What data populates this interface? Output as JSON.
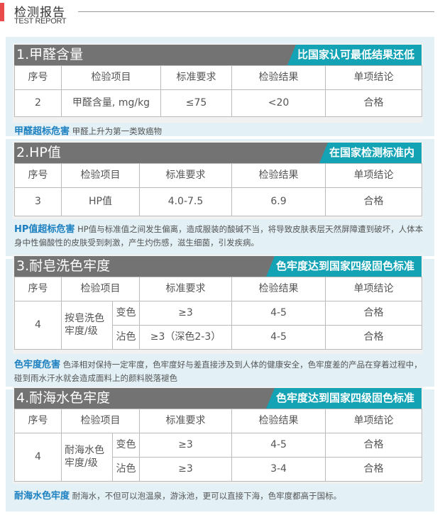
{
  "header": {
    "title": "检测报告",
    "subtitle": "TEST REPORT"
  },
  "sections": [
    {
      "title": "1.甲醛含量",
      "tag": "比国家认可最低结果还低",
      "headers": [
        "序号",
        "检验项目",
        "标准要求",
        "检验结果",
        "单项结论"
      ],
      "row": [
        "2",
        "甲醛含量, mg/kg",
        "≤75",
        "<20",
        "合格"
      ],
      "note_key": "甲醛超标危害",
      "note_text": "甲醛上升为第一类致癌物"
    },
    {
      "title": "2.HP值",
      "tag": "在国家检测标准内",
      "headers": [
        "序号",
        "检验项目",
        "标准要求",
        "检验结果",
        "单项结论"
      ],
      "row": [
        "3",
        "HP值",
        "4.0-7.5",
        "6.9",
        "合格"
      ],
      "note_key": "HP值超标危害",
      "note_text": "HP值与标准值之间发生偏离，造成服装的酸碱不当，将导致皮肤表层天然屏障遭到破坏，人体本身中性偏酸性的皮肤受到刺激，产生灼伤感，滋生细菌，引发疾病。"
    },
    {
      "title": "3.耐皂洗色牢度",
      "tag": "色牢度达到国家四级固色标准",
      "headers": [
        "序号",
        "检验项目",
        "标准要求",
        "检验结果",
        "单项结论"
      ],
      "num": "4",
      "item": "按皂洗色牢度/级",
      "rows": [
        {
          "sub": "变色",
          "std": "≥3",
          "result": "4-5",
          "conclusion": "合格"
        },
        {
          "sub": "沾色",
          "std": "≥3（深色2-3）",
          "result": "4-5",
          "conclusion": "合格"
        }
      ],
      "note_key": "色牢度危害",
      "note_text": "色泽相对保持一定牢度，色牢度好与差直接涉及到人体的健康安全，色牢度差的产品在穿着过程中，碰到雨水汗水就会造成面料上的颜料脱落褪色"
    },
    {
      "title": "4.耐海水色牢度",
      "tag": "色牢度达到国家四级固色标准",
      "headers": [
        "序号",
        "检验项目",
        "标准要求",
        "检验结果",
        "单项结论"
      ],
      "num": "4",
      "item": "耐海水色牢度/级",
      "rows": [
        {
          "sub": "变色",
          "std": "≥3",
          "result": "4-5",
          "conclusion": "合格"
        },
        {
          "sub": "沾色",
          "std": "≥3",
          "result": "3-4",
          "conclusion": "合格"
        }
      ],
      "note_key": "耐海水色牢度",
      "note_text": "耐海水，不但可以泡温泉，游泳池，更可以直接下海，色牢度都高于国标。"
    }
  ]
}
